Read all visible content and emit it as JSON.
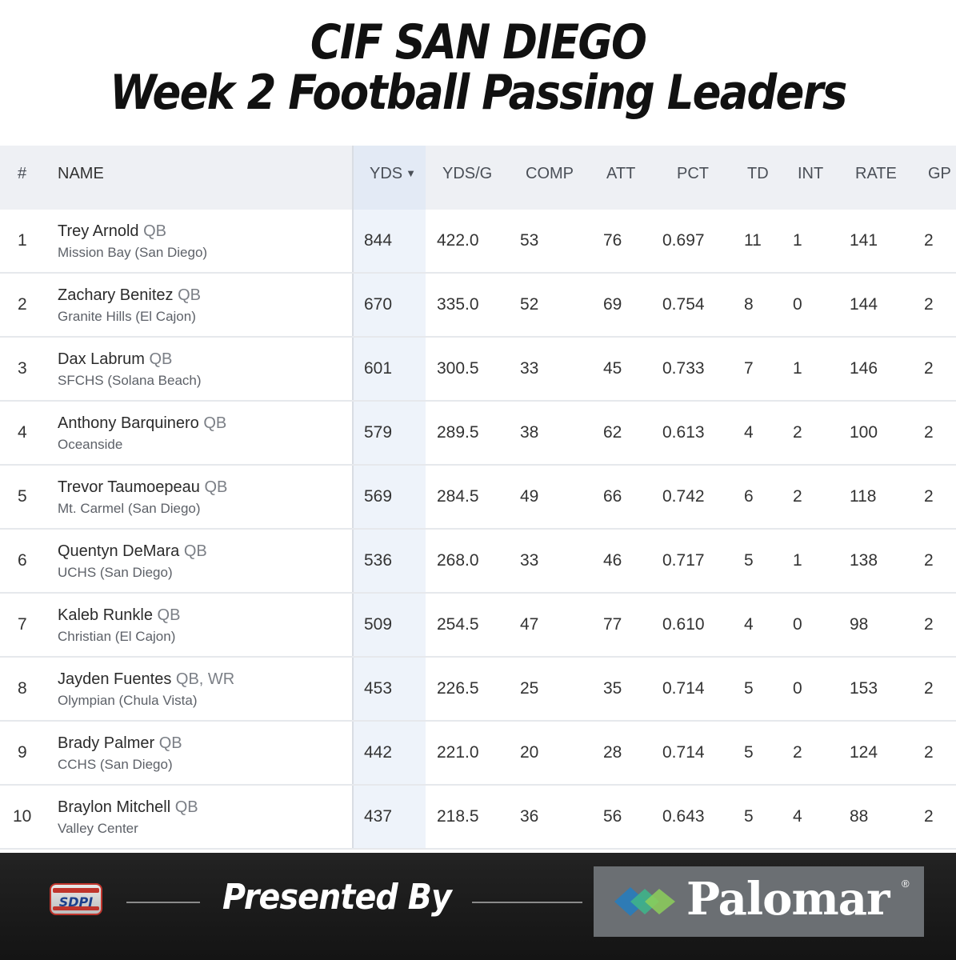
{
  "header": {
    "title_line1": "CIF SAN DIEGO",
    "title_line2": "Week 2 Football Passing Leaders"
  },
  "table": {
    "columns": [
      "#",
      "NAME",
      "YDS",
      "YDS/G",
      "COMP",
      "ATT",
      "PCT",
      "TD",
      "INT",
      "RATE",
      "GP"
    ],
    "sort_indicator": "▼",
    "rows": [
      {
        "rank": "1",
        "name": "Trey Arnold",
        "pos": "QB",
        "school": "Mission Bay (San Diego)",
        "yds": "844",
        "ydsg": "422.0",
        "comp": "53",
        "att": "76",
        "pct": "0.697",
        "td": "11",
        "int": "1",
        "rate": "141",
        "gp": "2"
      },
      {
        "rank": "2",
        "name": "Zachary Benitez",
        "pos": "QB",
        "school": "Granite Hills (El Cajon)",
        "yds": "670",
        "ydsg": "335.0",
        "comp": "52",
        "att": "69",
        "pct": "0.754",
        "td": "8",
        "int": "0",
        "rate": "144",
        "gp": "2"
      },
      {
        "rank": "3",
        "name": "Dax Labrum",
        "pos": "QB",
        "school": "SFCHS (Solana Beach)",
        "yds": "601",
        "ydsg": "300.5",
        "comp": "33",
        "att": "45",
        "pct": "0.733",
        "td": "7",
        "int": "1",
        "rate": "146",
        "gp": "2"
      },
      {
        "rank": "4",
        "name": "Anthony Barquinero",
        "pos": "QB",
        "school": "Oceanside",
        "yds": "579",
        "ydsg": "289.5",
        "comp": "38",
        "att": "62",
        "pct": "0.613",
        "td": "4",
        "int": "2",
        "rate": "100",
        "gp": "2"
      },
      {
        "rank": "5",
        "name": "Trevor Taumoepeau",
        "pos": "QB",
        "school": "Mt. Carmel (San Diego)",
        "yds": "569",
        "ydsg": "284.5",
        "comp": "49",
        "att": "66",
        "pct": "0.742",
        "td": "6",
        "int": "2",
        "rate": "118",
        "gp": "2"
      },
      {
        "rank": "6",
        "name": "Quentyn DeMara",
        "pos": "QB",
        "school": "UCHS (San Diego)",
        "yds": "536",
        "ydsg": "268.0",
        "comp": "33",
        "att": "46",
        "pct": "0.717",
        "td": "5",
        "int": "1",
        "rate": "138",
        "gp": "2"
      },
      {
        "rank": "7",
        "name": "Kaleb Runkle",
        "pos": "QB",
        "school": "Christian (El Cajon)",
        "yds": "509",
        "ydsg": "254.5",
        "comp": "47",
        "att": "77",
        "pct": "0.610",
        "td": "4",
        "int": "0",
        "rate": "98",
        "gp": "2"
      },
      {
        "rank": "8",
        "name": "Jayden Fuentes",
        "pos": "QB, WR",
        "school": "Olympian (Chula Vista)",
        "yds": "453",
        "ydsg": "226.5",
        "comp": "25",
        "att": "35",
        "pct": "0.714",
        "td": "5",
        "int": "0",
        "rate": "153",
        "gp": "2"
      },
      {
        "rank": "9",
        "name": "Brady Palmer",
        "pos": "QB",
        "school": "CCHS (San Diego)",
        "yds": "442",
        "ydsg": "221.0",
        "comp": "20",
        "att": "28",
        "pct": "0.714",
        "td": "5",
        "int": "2",
        "rate": "124",
        "gp": "2"
      },
      {
        "rank": "10",
        "name": "Braylon Mitchell",
        "pos": "QB",
        "school": "Valley Center",
        "yds": "437",
        "ydsg": "218.5",
        "comp": "36",
        "att": "56",
        "pct": "0.643",
        "td": "5",
        "int": "4",
        "rate": "88",
        "gp": "2"
      }
    ]
  },
  "footer": {
    "sdpi_logo_text": "SDPI",
    "presented_by": "Presented By",
    "sponsor_name": "Palomar",
    "sponsor_mark": "®",
    "sponsor_icon": "palomar-diamond-icon",
    "colors": {
      "sponsor_green": "#3fb28a",
      "sponsor_blue": "#2e7bb5",
      "sdpi_red": "#c0342c",
      "sdpi_blue": "#1c3f8c"
    }
  }
}
